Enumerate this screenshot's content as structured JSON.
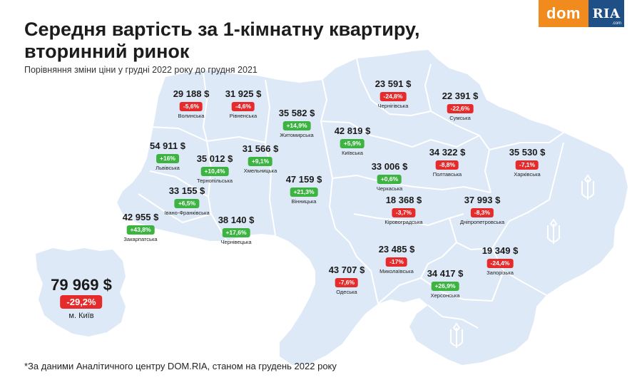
{
  "header": {
    "title_line1": "Середня вартість за 1-кімнатну квартиру,",
    "title_line2": "вторинний ринок",
    "subtitle": "Порівняння зміни ціни у грудні 2022 року до грудня 2021"
  },
  "footnote": "*За даними Аналітичного центру DOM.RIA, станом на грудень 2022 року",
  "logo": {
    "dom": "dom",
    "ria": "RIA",
    "com": ".com"
  },
  "colors": {
    "land": "#dde9f7",
    "border": "#ffffff",
    "positive": "#3db442",
    "negative": "#e52b2b",
    "logo_dom": "#f28b1e",
    "logo_ria": "#1f4f87"
  },
  "kyiv_city": {
    "price": "79 969 $",
    "change": "-29,2%",
    "trend": "negative",
    "name": "м. Київ"
  },
  "regions": [
    {
      "id": "volynska",
      "price": "29 188 $",
      "change": "-5,6%",
      "trend": "negative",
      "name": "Волинська"
    },
    {
      "id": "rivnenska",
      "price": "31 925 $",
      "change": "-4,6%",
      "trend": "negative",
      "name": "Рівненська"
    },
    {
      "id": "zhytomyrska",
      "price": "35 582 $",
      "change": "+14,9%",
      "trend": "positive",
      "name": "Житомирська"
    },
    {
      "id": "chernihivska",
      "price": "23 591 $",
      "change": "-24,8%",
      "trend": "negative",
      "name": "Чернігівська"
    },
    {
      "id": "sumska",
      "price": "22 391 $",
      "change": "-22,6%",
      "trend": "negative",
      "name": "Сумська"
    },
    {
      "id": "kyivska",
      "price": "42 819 $",
      "change": "+5,9%",
      "trend": "positive",
      "name": "Київська"
    },
    {
      "id": "lvivska",
      "price": "54 911 $",
      "change": "+16%",
      "trend": "positive",
      "name": "Львівська"
    },
    {
      "id": "ternopilska",
      "price": "35 012 $",
      "change": "+10,4%",
      "trend": "positive",
      "name": "Тернопільська"
    },
    {
      "id": "khmelnytska",
      "price": "31 566 $",
      "change": "+9,1%",
      "trend": "positive",
      "name": "Хмельницька"
    },
    {
      "id": "poltavska",
      "price": "34 322 $",
      "change": "-8,8%",
      "trend": "negative",
      "name": "Полтавська"
    },
    {
      "id": "kharkivska",
      "price": "35 530 $",
      "change": "-7,1%",
      "trend": "negative",
      "name": "Харківська"
    },
    {
      "id": "cherkaska",
      "price": "33 006 $",
      "change": "+0,6%",
      "trend": "positive",
      "name": "Черкаська"
    },
    {
      "id": "vinnytska",
      "price": "47 159 $",
      "change": "+21,3%",
      "trend": "positive",
      "name": "Вінницька"
    },
    {
      "id": "ivano-frankivska",
      "price": "33 155 $",
      "change": "+6,5%",
      "trend": "positive",
      "name": "Івано-Франківська"
    },
    {
      "id": "kirovohradska",
      "price": "18 368 $",
      "change": "-3,7%",
      "trend": "negative",
      "name": "Кіровоградська"
    },
    {
      "id": "dnipropetrovska",
      "price": "37 993 $",
      "change": "-8,3%",
      "trend": "negative",
      "name": "Дніпропетровська"
    },
    {
      "id": "zakarpatska",
      "price": "42 955 $",
      "change": "+43,8%",
      "trend": "positive",
      "name": "Закарпатська"
    },
    {
      "id": "chernivetska",
      "price": "38 140 $",
      "change": "+17,6%",
      "trend": "positive",
      "name": "Чернівецька"
    },
    {
      "id": "mykolaivska",
      "price": "23 485 $",
      "change": "-17%",
      "trend": "negative",
      "name": "Миколаївська"
    },
    {
      "id": "zaporizka",
      "price": "19 349 $",
      "change": "-24,4%",
      "trend": "negative",
      "name": "Запорізька"
    },
    {
      "id": "odeska",
      "price": "43 707 $",
      "change": "-7,6%",
      "trend": "negative",
      "name": "Одеська"
    },
    {
      "id": "khersonska",
      "price": "34 417 $",
      "change": "+26,9%",
      "trend": "positive",
      "name": "Херсонська"
    }
  ]
}
